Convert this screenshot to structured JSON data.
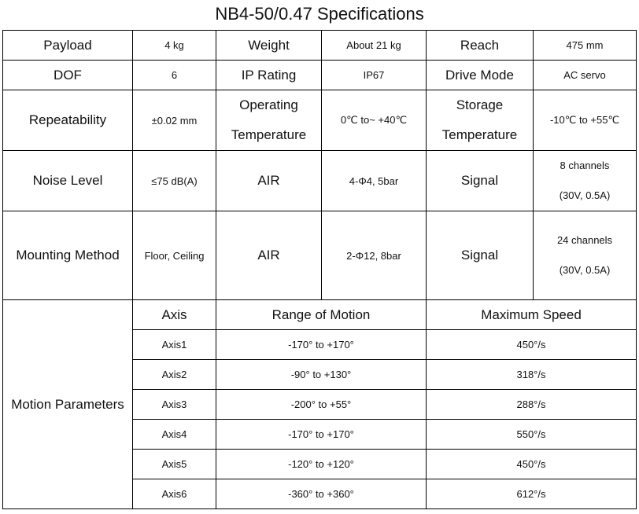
{
  "title": "NB4-50/0.47 Specifications",
  "rows": {
    "r1": [
      {
        "label": "Payload",
        "value": "4 kg"
      },
      {
        "label": "Weight",
        "value": "About 21 kg"
      },
      {
        "label": "Reach",
        "value": "475 mm"
      }
    ],
    "r2": [
      {
        "label": "DOF",
        "value": "6"
      },
      {
        "label": "IP Rating",
        "value": "IP67"
      },
      {
        "label": "Drive Mode",
        "value": "AC servo"
      }
    ],
    "r3": {
      "repeatability_label": "Repeatability",
      "repeatability_value": "±0.02 mm",
      "operating_label_1": "Operating",
      "operating_label_2": "Temperature",
      "operating_value": "0℃ to~ +40℃",
      "storage_label_1": "Storage",
      "storage_label_2": "Temperature",
      "storage_value": "-10℃  to +55℃"
    },
    "r4": {
      "noise_label": "Noise Level",
      "noise_value": "≤75 dB(A)",
      "air_label": "AIR",
      "air_value": "4-Φ4, 5bar",
      "signal_label": "Signal",
      "signal_value_1": "8 channels",
      "signal_value_2": "(30V, 0.5A)"
    },
    "r5": {
      "mounting_label": "Mounting Method",
      "mounting_value": "Floor, Ceiling",
      "air_label": "AIR",
      "air_value": "2-Φ12, 8bar",
      "signal_label": "Signal",
      "signal_value_1": "24 channels",
      "signal_value_2": "(30V, 0.5A)"
    }
  },
  "motion": {
    "label": "Motion Parameters",
    "headers": {
      "axis": "Axis",
      "range": "Range of Motion",
      "speed": "Maximum Speed"
    },
    "axes": [
      {
        "axis": "Axis1",
        "range": "-170° to +170°",
        "speed": "450°/s"
      },
      {
        "axis": "Axis2",
        "range": "-90° to +130°",
        "speed": "318°/s"
      },
      {
        "axis": "Axis3",
        "range": "-200° to +55°",
        "speed": "288°/s"
      },
      {
        "axis": "Axis4",
        "range": "-170° to +170°",
        "speed": "550°/s"
      },
      {
        "axis": "Axis5",
        "range": "-120° to +120°",
        "speed": "450°/s"
      },
      {
        "axis": "Axis6",
        "range": "-360°  to +360°",
        "speed": "612°/s"
      }
    ]
  }
}
